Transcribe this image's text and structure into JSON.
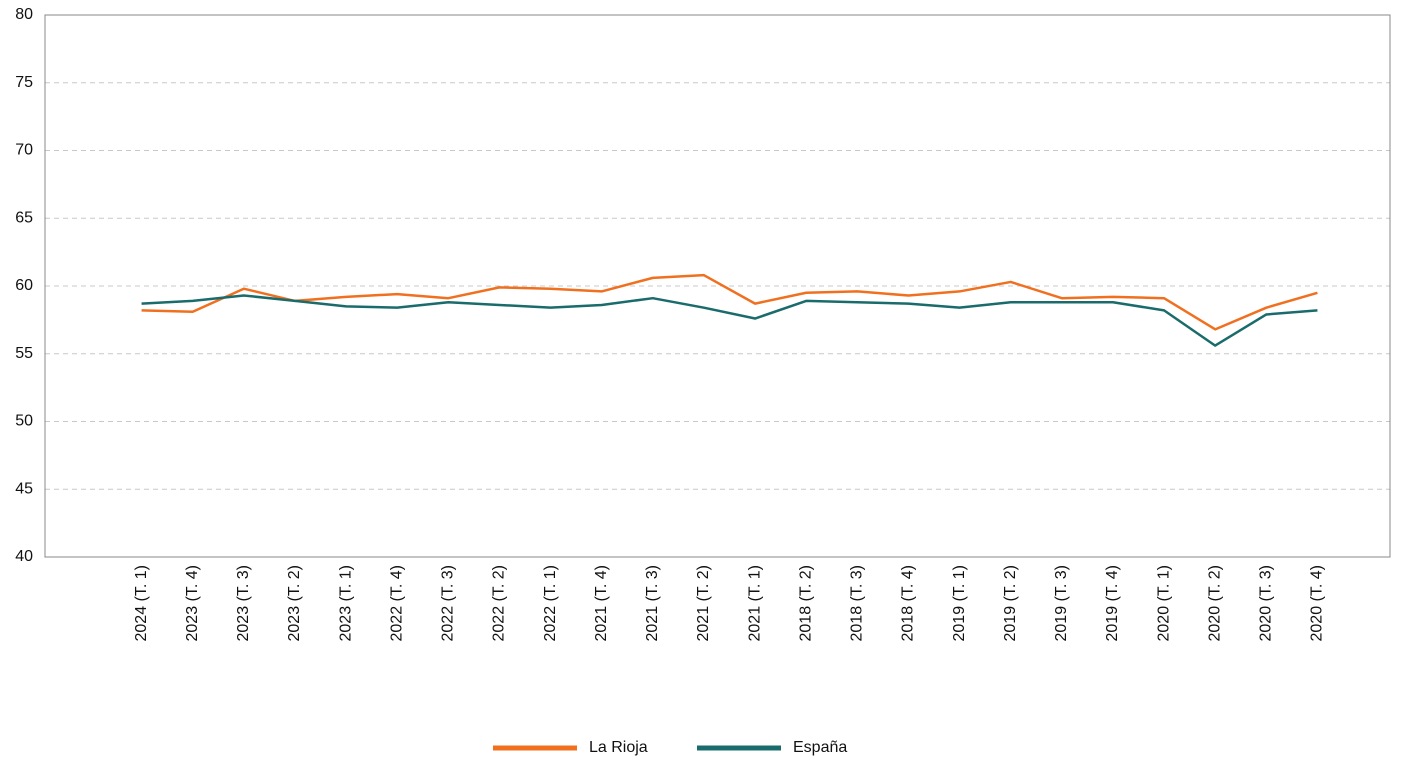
{
  "chart_data": {
    "type": "line",
    "categories": [
      "2024 (T. 1)",
      "2023 (T. 4)",
      "2023 (T. 3)",
      "2023 (T. 2)",
      "2023 (T. 1)",
      "2022 (T. 4)",
      "2022 (T. 3)",
      "2022 (T. 2)",
      "2022 (T. 1)",
      "2021 (T. 4)",
      "2021 (T. 3)",
      "2021 (T. 2)",
      "2021 (T. 1)",
      "2018 (T. 2)",
      "2018 (T. 3)",
      "2018 (T. 4)",
      "2019 (T. 1)",
      "2019 (T. 2)",
      "2019 (T. 3)",
      "2019 (T. 4)",
      "2020 (T. 1)",
      "2020 (T. 2)",
      "2020 (T. 3)",
      "2020 (T. 4)"
    ],
    "series": [
      {
        "name": "La Rioja",
        "color": "#f07020",
        "values": [
          58.2,
          58.1,
          59.8,
          58.9,
          59.2,
          59.4,
          59.1,
          59.9,
          59.8,
          59.6,
          60.6,
          60.8,
          58.7,
          59.5,
          59.6,
          59.3,
          59.6,
          60.3,
          59.1,
          59.2,
          59.1,
          56.8,
          58.4,
          59.5
        ]
      },
      {
        "name": "España",
        "color": "#1a6b6b",
        "values": [
          58.7,
          58.9,
          59.3,
          58.9,
          58.5,
          58.4,
          58.8,
          58.6,
          58.4,
          58.6,
          59.1,
          58.4,
          57.6,
          58.9,
          58.8,
          58.7,
          58.4,
          58.8,
          58.8,
          58.8,
          58.2,
          55.6,
          57.9,
          58.2
        ]
      }
    ],
    "ylim": [
      40,
      80
    ],
    "yticks": [
      40,
      45,
      50,
      55,
      60,
      65,
      70,
      75,
      80
    ],
    "grid": true,
    "legend": "bottom"
  }
}
